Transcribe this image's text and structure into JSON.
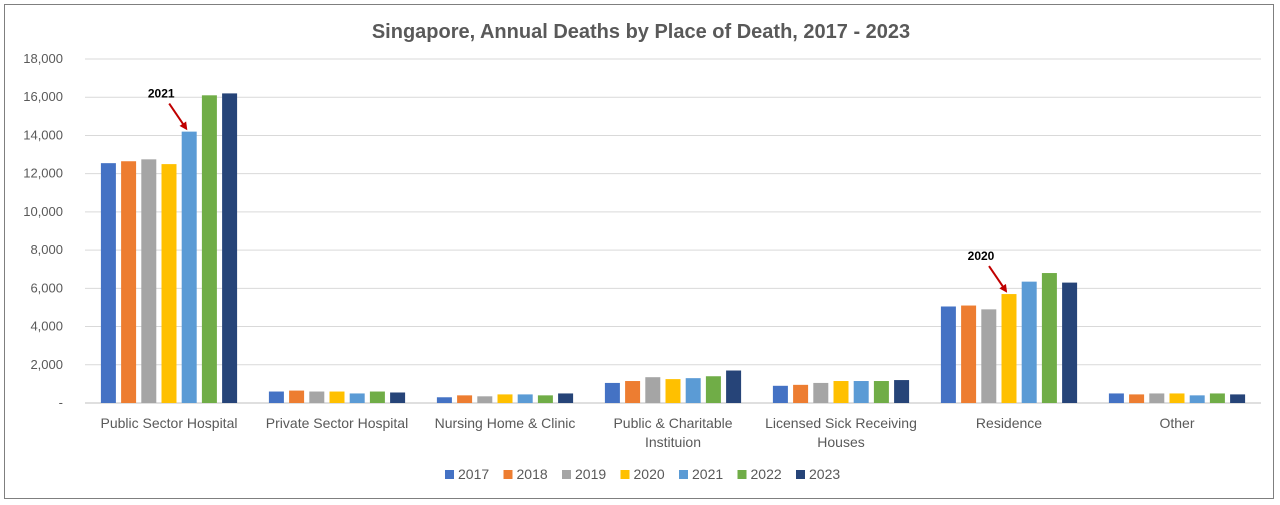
{
  "chart_data": {
    "type": "bar",
    "title": "Singapore, Annual Deaths by Place of Death, 2017 - 2023",
    "categories": [
      [
        "Public Sector Hospital"
      ],
      [
        "Private Sector Hospital"
      ],
      [
        "Nursing Home & Clinic"
      ],
      [
        "Public & Charitable",
        "Instituion"
      ],
      [
        "Licensed Sick Receiving",
        "Houses"
      ],
      [
        "Residence"
      ],
      [
        "Other"
      ]
    ],
    "series": [
      {
        "name": "2017",
        "color": "#4472C4",
        "values": [
          12550,
          600,
          300,
          1050,
          900,
          5050,
          500
        ]
      },
      {
        "name": "2018",
        "color": "#ED7D31",
        "values": [
          12650,
          650,
          400,
          1150,
          950,
          5100,
          450
        ]
      },
      {
        "name": "2019",
        "color": "#A5A5A5",
        "values": [
          12750,
          600,
          350,
          1350,
          1050,
          4900,
          500
        ]
      },
      {
        "name": "2020",
        "color": "#FFC000",
        "values": [
          12500,
          600,
          450,
          1250,
          1150,
          5700,
          500
        ]
      },
      {
        "name": "2021",
        "color": "#5B9BD5",
        "values": [
          14200,
          500,
          450,
          1300,
          1150,
          6350,
          400
        ]
      },
      {
        "name": "2022",
        "color": "#70AD47",
        "values": [
          16100,
          600,
          400,
          1400,
          1150,
          6800,
          500
        ]
      },
      {
        "name": "2023",
        "color": "#264478",
        "values": [
          16200,
          550,
          500,
          1700,
          1200,
          6300,
          450
        ]
      }
    ],
    "ylim": [
      0,
      18000
    ],
    "yticks": [
      {
        "value": 0,
        "label": "-"
      },
      {
        "value": 2000,
        "label": "2,000"
      },
      {
        "value": 4000,
        "label": "4,000"
      },
      {
        "value": 6000,
        "label": "6,000"
      },
      {
        "value": 8000,
        "label": "8,000"
      },
      {
        "value": 10000,
        "label": "10,000"
      },
      {
        "value": 12000,
        "label": "12,000"
      },
      {
        "value": 14000,
        "label": "14,000"
      },
      {
        "value": 16000,
        "label": "16,000"
      },
      {
        "value": 18000,
        "label": "18,000"
      }
    ],
    "grid": true,
    "legend_position": "bottom",
    "annotations": [
      {
        "text": "2021",
        "category_index": 0,
        "series_index": 4,
        "arrow_color": "#C00000"
      },
      {
        "text": "2020",
        "category_index": 5,
        "series_index": 3,
        "arrow_color": "#C00000"
      }
    ]
  }
}
